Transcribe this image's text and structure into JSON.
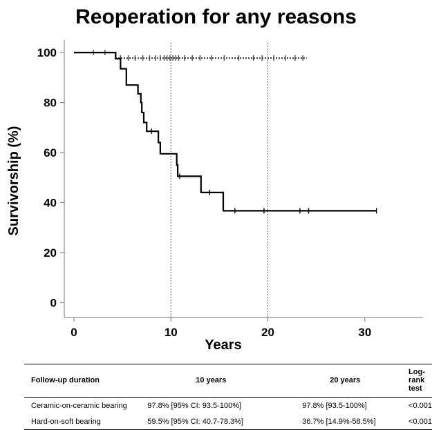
{
  "title": "Reoperation for any reasons",
  "chart_data": {
    "type": "line",
    "title": "Reoperation for any reasons",
    "xlabel": "Years",
    "ylabel": "Survivorship (%)",
    "xlim": [
      -1,
      36
    ],
    "ylim": [
      -6,
      105
    ],
    "x_ticks": [
      0,
      10,
      20,
      30
    ],
    "y_ticks": [
      0,
      20,
      40,
      60,
      80,
      100
    ],
    "reference_lines_x": [
      10,
      20
    ],
    "series": [
      {
        "style": "dotted",
        "color": "#444444",
        "steps": [
          [
            0,
            100
          ],
          [
            4.3,
            100
          ],
          [
            4.3,
            97.8
          ],
          [
            24,
            97.8
          ]
        ],
        "censors": [
          [
            2,
            100
          ],
          [
            3.2,
            100
          ],
          [
            4.8,
            97.8
          ],
          [
            5.6,
            97.8
          ],
          [
            6.3,
            97.8
          ],
          [
            7.1,
            97.8
          ],
          [
            7.8,
            97.8
          ],
          [
            8.4,
            97.8
          ],
          [
            8.9,
            97.8
          ],
          [
            9.3,
            97.8
          ],
          [
            9.6,
            97.8
          ],
          [
            9.9,
            97.8
          ],
          [
            10.2,
            97.8
          ],
          [
            10.5,
            97.8
          ],
          [
            10.8,
            97.8
          ],
          [
            11.4,
            97.8
          ],
          [
            12.2,
            97.8
          ],
          [
            13.0,
            97.8
          ],
          [
            14.2,
            97.8
          ],
          [
            15.5,
            97.8
          ],
          [
            17.0,
            97.8
          ],
          [
            18.5,
            97.8
          ],
          [
            19.4,
            97.8
          ],
          [
            20.6,
            97.8
          ],
          [
            21.8,
            97.8
          ],
          [
            22.8,
            97.8
          ],
          [
            23.6,
            97.8
          ]
        ]
      },
      {
        "style": "solid",
        "color": "#000000",
        "steps": [
          [
            0,
            100
          ],
          [
            4.3,
            100
          ],
          [
            4.3,
            97.5
          ],
          [
            4.8,
            97.5
          ],
          [
            4.8,
            93.5
          ],
          [
            5.4,
            93.5
          ],
          [
            5.4,
            87
          ],
          [
            6.6,
            87
          ],
          [
            6.6,
            83.5
          ],
          [
            6.9,
            83.5
          ],
          [
            6.9,
            80
          ],
          [
            7.0,
            80
          ],
          [
            7.0,
            76
          ],
          [
            7.2,
            76
          ],
          [
            7.2,
            72
          ],
          [
            7.5,
            72
          ],
          [
            7.5,
            68.5
          ],
          [
            8.7,
            68.5
          ],
          [
            8.7,
            64
          ],
          [
            8.9,
            64
          ],
          [
            8.9,
            59.5
          ],
          [
            10.6,
            59.5
          ],
          [
            10.6,
            55
          ],
          [
            10.7,
            55
          ],
          [
            10.7,
            50.5
          ],
          [
            13.1,
            50.5
          ],
          [
            13.1,
            44
          ],
          [
            15.4,
            44
          ],
          [
            15.4,
            36.7
          ],
          [
            31.2,
            36.7
          ]
        ],
        "censors": [
          [
            8.0,
            68.5
          ],
          [
            10.9,
            50.5
          ],
          [
            14.0,
            44
          ],
          [
            16.6,
            36.7
          ],
          [
            19.6,
            36.7
          ],
          [
            23.3,
            36.7
          ],
          [
            24.2,
            36.7
          ],
          [
            31.2,
            36.7
          ]
        ]
      }
    ]
  },
  "table": {
    "headers": [
      "Follow-up duration",
      "10 years",
      "20 years",
      "Log-rank test"
    ],
    "rows": [
      [
        "Ceramic-on-ceramic bearing",
        "97.8% [95% CI: 93.5-100%]",
        "97.8% [93.5-100%]",
        "<0.001"
      ],
      [
        "Hard-on-soft bearing",
        "59.5% [95% CI: 40.7-78.3%]",
        "36.7% [14.9%-58.5%]",
        "<0.001"
      ]
    ]
  }
}
